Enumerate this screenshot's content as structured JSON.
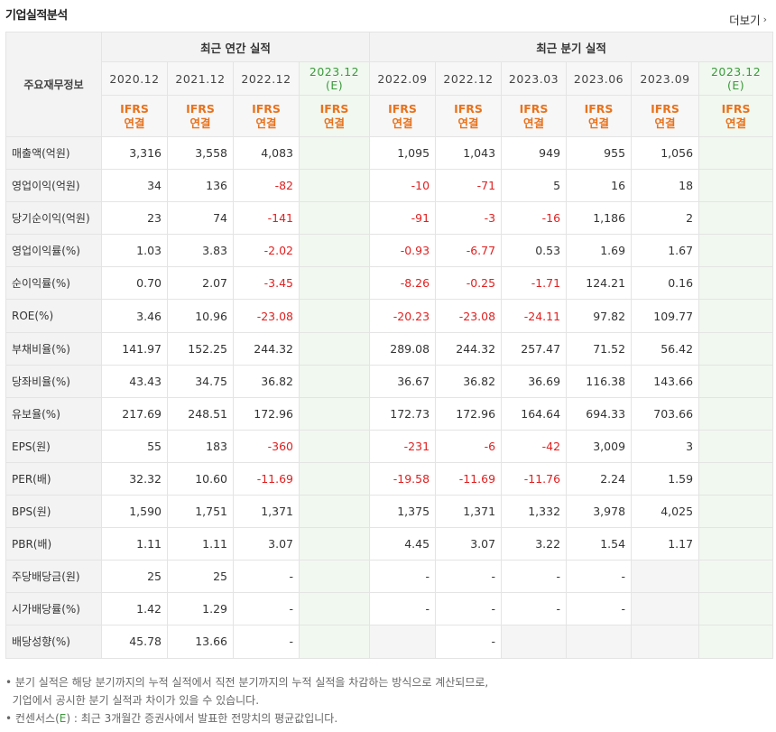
{
  "title": "기업실적분석",
  "more_label": "더보기",
  "more_icon": "chevron-right-icon",
  "header": {
    "corner": "주요재무정보",
    "annual_group": "최근 연간 실적",
    "quarter_group": "최근 분기 실적",
    "annual_periods": [
      "2020.12",
      "2021.12",
      "2022.12",
      "2023.12"
    ],
    "quarter_periods": [
      "2022.09",
      "2022.12",
      "2023.03",
      "2023.06",
      "2023.09",
      "2023.12"
    ],
    "estimate_mark": "(E)",
    "ifrs": "IFRS",
    "consolidated": "연결"
  },
  "rows": [
    {
      "label": "매출액(억원)",
      "values": [
        "3,316",
        "3,558",
        "4,083",
        "",
        "1,095",
        "1,043",
        "949",
        "955",
        "1,056",
        ""
      ]
    },
    {
      "label": "영업이익(억원)",
      "values": [
        "34",
        "136",
        "-82",
        "",
        "-10",
        "-71",
        "5",
        "16",
        "18",
        ""
      ]
    },
    {
      "label": "당기순이익(억원)",
      "values": [
        "23",
        "74",
        "-141",
        "",
        "-91",
        "-3",
        "-16",
        "1,186",
        "2",
        ""
      ]
    },
    {
      "label": "영업이익률(%)",
      "values": [
        "1.03",
        "3.83",
        "-2.02",
        "",
        "-0.93",
        "-6.77",
        "0.53",
        "1.69",
        "1.67",
        ""
      ]
    },
    {
      "label": "순이익률(%)",
      "values": [
        "0.70",
        "2.07",
        "-3.45",
        "",
        "-8.26",
        "-0.25",
        "-1.71",
        "124.21",
        "0.16",
        ""
      ]
    },
    {
      "label": "ROE(%)",
      "values": [
        "3.46",
        "10.96",
        "-23.08",
        "",
        "-20.23",
        "-23.08",
        "-24.11",
        "97.82",
        "109.77",
        ""
      ]
    },
    {
      "label": "부채비율(%)",
      "values": [
        "141.97",
        "152.25",
        "244.32",
        "",
        "289.08",
        "244.32",
        "257.47",
        "71.52",
        "56.42",
        ""
      ]
    },
    {
      "label": "당좌비율(%)",
      "values": [
        "43.43",
        "34.75",
        "36.82",
        "",
        "36.67",
        "36.82",
        "36.69",
        "116.38",
        "143.66",
        ""
      ]
    },
    {
      "label": "유보율(%)",
      "values": [
        "217.69",
        "248.51",
        "172.96",
        "",
        "172.73",
        "172.96",
        "164.64",
        "694.33",
        "703.66",
        ""
      ]
    },
    {
      "label": "EPS(원)",
      "values": [
        "55",
        "183",
        "-360",
        "",
        "-231",
        "-6",
        "-42",
        "3,009",
        "3",
        ""
      ]
    },
    {
      "label": "PER(배)",
      "values": [
        "32.32",
        "10.60",
        "-11.69",
        "",
        "-19.58",
        "-11.69",
        "-11.76",
        "2.24",
        "1.59",
        ""
      ]
    },
    {
      "label": "BPS(원)",
      "values": [
        "1,590",
        "1,751",
        "1,371",
        "",
        "1,375",
        "1,371",
        "1,332",
        "3,978",
        "4,025",
        ""
      ]
    },
    {
      "label": "PBR(배)",
      "values": [
        "1.11",
        "1.11",
        "3.07",
        "",
        "4.45",
        "3.07",
        "3.22",
        "1.54",
        "1.17",
        ""
      ]
    },
    {
      "label": "주당배당금(원)",
      "values": [
        "25",
        "25",
        "-",
        "",
        "-",
        "-",
        "-",
        "-",
        "",
        ""
      ]
    },
    {
      "label": "시가배당률(%)",
      "values": [
        "1.42",
        "1.29",
        "-",
        "",
        "-",
        "-",
        "-",
        "-",
        "",
        ""
      ]
    },
    {
      "label": "배당성향(%)",
      "values": [
        "45.78",
        "13.66",
        "-",
        "",
        "",
        "-",
        "",
        "",
        "",
        ""
      ]
    }
  ],
  "notes": {
    "line1": "분기 실적은 해당 분기까지의 누적 실적에서 직전 분기까지의 누적 실적을 차감하는 방식으로 계산되므로,",
    "line2": "기업에서 공시한 분기 실적과 차이가 있을 수 있습니다.",
    "line3_prefix": "컨센서스(",
    "line3_mark": "E",
    "line3_suffix": ") : 최근 3개월간 증권사에서 발표한 전망치의 평균값입니다.",
    "bullet": "•"
  },
  "colors": {
    "negative": "#e02020",
    "ifrs": "#e8721c",
    "estimate": "#3a9a3a",
    "estimate_bg": "#f1f8f0"
  }
}
